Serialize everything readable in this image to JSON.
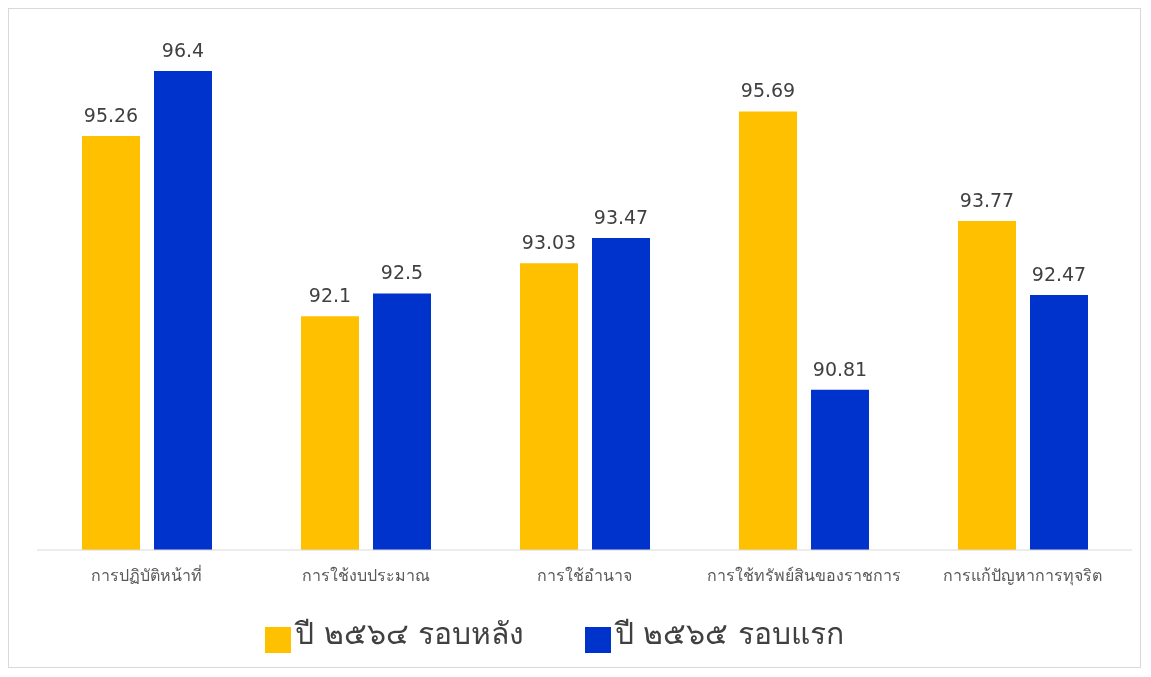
{
  "chart_data": {
    "type": "bar",
    "categories": [
      "การปฏิบัติหน้าที่",
      "การใช้งบประมาณ",
      "การใช้อำนาจ",
      "การใช้ทรัพย์สินของราชการ",
      "การแก้ปัญหาการทุจริต"
    ],
    "series": [
      {
        "name": "ปี ๒๕๖๔ รอบหลัง",
        "color": "#ffc000",
        "values": [
          95.26,
          92.1,
          93.03,
          95.69,
          93.77
        ]
      },
      {
        "name": "ปี ๒๕๖๕ รอบแรก",
        "color": "#0033cc",
        "values": [
          96.4,
          92.5,
          93.47,
          90.81,
          92.47
        ]
      }
    ],
    "ylim": [
      88,
      96.4
    ],
    "tick_labels": "x",
    "data_labels": true,
    "grid": false,
    "legend": "bottom"
  }
}
